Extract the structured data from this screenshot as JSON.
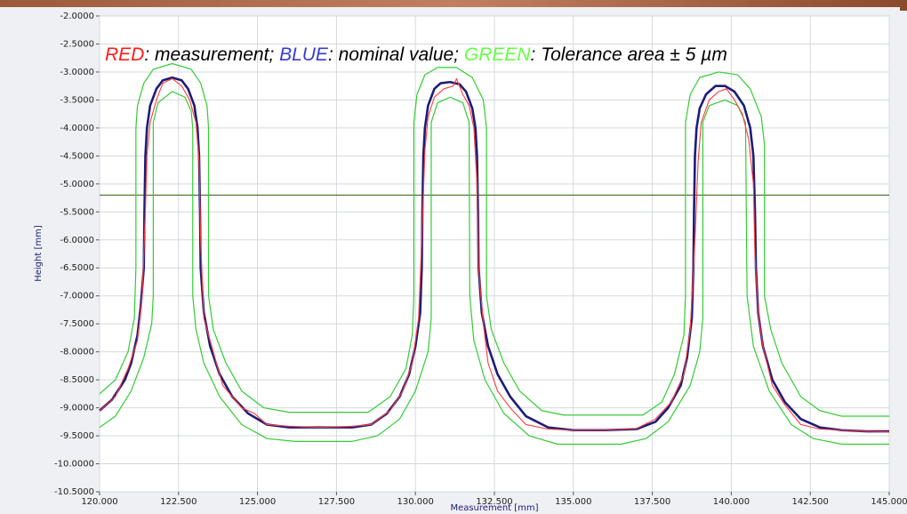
{
  "chart_data": {
    "type": "line",
    "annotation": [
      {
        "text": "RED",
        "color": "#ff1a1a"
      },
      {
        "text": ": measurement; ",
        "color": "#000000"
      },
      {
        "text": "BLUE",
        "color": "#3a3ad0"
      },
      {
        "text": ": nominal value; ",
        "color": "#000000"
      },
      {
        "text": "GREEN",
        "color": "#66ff44"
      },
      {
        "text": ": Tolerance area ± 5 µm",
        "color": "#000000"
      }
    ],
    "x_label": "Measurement [mm]",
    "y_label": "Height [mm]",
    "xlim": [
      120,
      145
    ],
    "ylim": [
      -10.5,
      -2
    ],
    "xticks": [
      {
        "value": 120,
        "label": "120.000"
      },
      {
        "value": 122.5,
        "label": "122.500"
      },
      {
        "value": 125,
        "label": "125.000"
      },
      {
        "value": 127.5,
        "label": "127.500"
      },
      {
        "value": 130,
        "label": "130.000"
      },
      {
        "value": 132.5,
        "label": "132.500"
      },
      {
        "value": 135,
        "label": "135.000"
      },
      {
        "value": 137.5,
        "label": "137.500"
      },
      {
        "value": 140,
        "label": "140.000"
      },
      {
        "value": 142.5,
        "label": "142.500"
      },
      {
        "value": 145,
        "label": "145.000"
      }
    ],
    "yticks": [
      {
        "value": -2,
        "label": "-2.0000"
      },
      {
        "value": -2.5,
        "label": "-2.5000"
      },
      {
        "value": -3,
        "label": "-3.0000"
      },
      {
        "value": -3.5,
        "label": "-3.5000"
      },
      {
        "value": -4,
        "label": "-4.0000"
      },
      {
        "value": -4.5,
        "label": "-4.5000"
      },
      {
        "value": -5,
        "label": "-5.0000"
      },
      {
        "value": -5.5,
        "label": "-5.5000"
      },
      {
        "value": -6,
        "label": "-6.0000"
      },
      {
        "value": -6.5,
        "label": "-6.5000"
      },
      {
        "value": -7,
        "label": "-7.0000"
      },
      {
        "value": -7.5,
        "label": "-7.5000"
      },
      {
        "value": -8,
        "label": "-8.0000"
      },
      {
        "value": -8.5,
        "label": "-8.5000"
      },
      {
        "value": -9,
        "label": "-9.0000"
      },
      {
        "value": -9.5,
        "label": "-9.5000"
      },
      {
        "value": -10,
        "label": "-10.0000"
      },
      {
        "value": -10.5,
        "label": "-10.5000"
      }
    ],
    "grid": true,
    "reference_lines": [
      {
        "value": -5.2,
        "color": "#2f5d0a"
      }
    ],
    "series": [
      {
        "color": "#33cc33",
        "line_width": 1.2,
        "x": [
          120,
          120.5,
          120.9,
          121.1,
          121.15,
          121.15,
          121.2,
          121.4,
          121.7,
          122.3,
          122.9,
          123.2,
          123.4,
          123.45,
          123.45,
          123.6,
          124.0,
          124.5,
          125.2,
          126,
          128.5,
          129.2,
          129.7,
          129.9,
          129.95,
          129.95,
          130.05,
          130.3,
          130.7,
          131.3,
          131.8,
          132.15,
          132.25,
          132.25,
          132.4,
          132.8,
          133.3,
          134,
          134.7,
          137.2,
          137.8,
          138.2,
          138.5,
          138.55,
          138.55,
          138.7,
          139.0,
          139.6,
          140.2,
          140.6,
          140.95,
          141.05,
          141.05,
          141.25,
          141.6,
          142.2,
          142.8,
          143.5,
          145
        ],
        "values": [
          -8.75,
          -8.5,
          -8.0,
          -7.4,
          -6.5,
          -4.0,
          -3.6,
          -3.2,
          -2.95,
          -2.85,
          -2.95,
          -3.2,
          -3.6,
          -4.0,
          -7.0,
          -7.6,
          -8.2,
          -8.7,
          -9.0,
          -9.08,
          -9.08,
          -8.8,
          -8.3,
          -7.7,
          -7.0,
          -3.9,
          -3.4,
          -3.05,
          -2.92,
          -2.92,
          -3.1,
          -3.5,
          -4.0,
          -7.0,
          -7.6,
          -8.2,
          -8.7,
          -9.05,
          -9.13,
          -9.13,
          -8.9,
          -8.4,
          -7.7,
          -7.0,
          -3.9,
          -3.4,
          -3.1,
          -3.0,
          -3.05,
          -3.3,
          -3.8,
          -4.3,
          -7.0,
          -7.6,
          -8.2,
          -8.8,
          -9.05,
          -9.15,
          -9.15
        ]
      },
      {
        "color": "#33cc33",
        "line_width": 1.2,
        "x": [
          120,
          120.5,
          121.0,
          121.4,
          121.65,
          121.7,
          121.7,
          121.85,
          122.3,
          122.7,
          122.9,
          122.95,
          122.95,
          123.05,
          123.3,
          123.8,
          124.5,
          125.3,
          126.2,
          128.0,
          128.8,
          129.5,
          130.0,
          130.4,
          130.5,
          130.5,
          130.7,
          131.1,
          131.5,
          131.7,
          131.72,
          131.85,
          132.2,
          132.8,
          133.6,
          134.5,
          136.5,
          137.3,
          138.0,
          138.7,
          139.0,
          139.1,
          139.1,
          139.3,
          139.8,
          140.2,
          140.45,
          140.5,
          140.7,
          141.2,
          141.9,
          142.6,
          143.5,
          145
        ],
        "values": [
          -9.35,
          -9.15,
          -8.7,
          -8.1,
          -7.5,
          -7.0,
          -3.9,
          -3.55,
          -3.35,
          -3.45,
          -3.7,
          -4.0,
          -7.0,
          -7.6,
          -8.2,
          -8.8,
          -9.3,
          -9.55,
          -9.6,
          -9.6,
          -9.5,
          -9.2,
          -8.7,
          -8.0,
          -7.4,
          -3.9,
          -3.55,
          -3.45,
          -3.55,
          -3.9,
          -7.0,
          -7.8,
          -8.5,
          -9.1,
          -9.5,
          -9.65,
          -9.65,
          -9.55,
          -9.25,
          -8.6,
          -8.0,
          -7.4,
          -3.9,
          -3.6,
          -3.5,
          -3.6,
          -3.9,
          -7.0,
          -7.9,
          -8.7,
          -9.3,
          -9.55,
          -9.65,
          -9.65
        ]
      },
      {
        "color": "#1c1c78",
        "line_width": 2.6,
        "x": [
          120.0,
          120.4,
          120.8,
          121.0,
          121.2,
          121.3,
          121.4,
          121.42,
          121.45,
          121.5,
          121.6,
          121.8,
          122.0,
          122.3,
          122.6,
          122.8,
          123.0,
          123.1,
          123.15,
          123.18,
          123.2,
          123.3,
          123.5,
          123.8,
          124.2,
          124.7,
          125.3,
          126.0,
          127.0,
          128.0,
          128.6,
          129.1,
          129.5,
          129.8,
          130.0,
          130.15,
          130.2,
          130.22,
          130.25,
          130.3,
          130.4,
          130.6,
          130.8,
          131.1,
          131.4,
          131.6,
          131.8,
          131.9,
          131.95,
          131.98,
          132.0,
          132.1,
          132.3,
          132.6,
          133.0,
          133.5,
          134.2,
          135.0,
          136.0,
          137.0,
          137.6,
          138.0,
          138.4,
          138.6,
          138.75,
          138.8,
          138.82,
          138.85,
          138.9,
          139.0,
          139.2,
          139.5,
          139.8,
          140.1,
          140.4,
          140.6,
          140.7,
          140.75,
          140.78,
          140.85,
          141.0,
          141.3,
          141.7,
          142.2,
          142.8,
          143.5,
          144.3,
          145.0
        ],
        "values": [
          -9.05,
          -8.85,
          -8.5,
          -8.2,
          -7.7,
          -7.2,
          -6.5,
          -5.5,
          -4.5,
          -4.0,
          -3.6,
          -3.3,
          -3.15,
          -3.1,
          -3.15,
          -3.3,
          -3.6,
          -4.0,
          -4.5,
          -5.5,
          -6.5,
          -7.3,
          -7.9,
          -8.4,
          -8.8,
          -9.1,
          -9.3,
          -9.35,
          -9.35,
          -9.35,
          -9.3,
          -9.1,
          -8.8,
          -8.4,
          -7.9,
          -7.3,
          -6.5,
          -5.5,
          -4.5,
          -4.0,
          -3.6,
          -3.3,
          -3.2,
          -3.18,
          -3.22,
          -3.35,
          -3.65,
          -4.0,
          -4.5,
          -5.5,
          -6.5,
          -7.3,
          -7.9,
          -8.4,
          -8.8,
          -9.15,
          -9.35,
          -9.4,
          -9.4,
          -9.38,
          -9.25,
          -9.0,
          -8.6,
          -8.1,
          -7.4,
          -6.5,
          -5.5,
          -4.5,
          -4.0,
          -3.65,
          -3.4,
          -3.25,
          -3.25,
          -3.35,
          -3.6,
          -4.0,
          -4.5,
          -5.5,
          -6.5,
          -7.3,
          -7.9,
          -8.5,
          -8.9,
          -9.2,
          -9.35,
          -9.4,
          -9.42,
          -9.42
        ]
      },
      {
        "color": "#ff3b3b",
        "line_width": 1.1,
        "x": [
          120,
          120.5,
          120.9,
          121.2,
          121.35,
          121.45,
          121.5,
          121.6,
          121.8,
          122.0,
          122.3,
          122.6,
          122.85,
          123.05,
          123.15,
          123.2,
          123.3,
          123.6,
          123.9,
          124.2,
          124.5,
          124.9,
          125.3,
          126.0,
          127.0,
          128.0,
          128.6,
          129.2,
          129.6,
          129.9,
          130.1,
          130.2,
          130.3,
          130.4,
          130.6,
          130.9,
          131.2,
          131.3,
          131.5,
          131.7,
          131.85,
          131.95,
          132.0,
          132.15,
          132.3,
          132.6,
          133.0,
          133.5,
          134.2,
          135,
          136,
          137,
          137.6,
          138.1,
          138.5,
          138.7,
          138.85,
          138.95,
          139.05,
          139.3,
          139.6,
          139.85,
          140.1,
          140.35,
          140.55,
          140.7,
          140.75,
          140.85,
          141.0,
          141.3,
          141.7,
          142.2,
          142.8,
          143.5,
          144.3,
          145
        ],
        "values": [
          -9.05,
          -8.8,
          -8.3,
          -7.8,
          -7.0,
          -5.5,
          -4.5,
          -3.9,
          -3.5,
          -3.2,
          -3.12,
          -3.25,
          -3.5,
          -3.9,
          -4.6,
          -6.0,
          -7.4,
          -8.0,
          -8.6,
          -8.8,
          -9.0,
          -9.1,
          -9.3,
          -9.33,
          -9.35,
          -9.33,
          -9.3,
          -9.05,
          -8.7,
          -8.2,
          -7.4,
          -6.0,
          -4.4,
          -3.8,
          -3.45,
          -3.3,
          -3.25,
          -3.12,
          -3.4,
          -3.6,
          -4.0,
          -5.0,
          -6.5,
          -7.5,
          -8.2,
          -8.7,
          -9.0,
          -9.3,
          -9.38,
          -9.4,
          -9.4,
          -9.37,
          -9.2,
          -8.9,
          -8.4,
          -7.6,
          -6.0,
          -4.6,
          -3.9,
          -3.5,
          -3.35,
          -3.3,
          -3.5,
          -3.75,
          -4.2,
          -5.0,
          -6.3,
          -7.3,
          -7.9,
          -8.6,
          -8.95,
          -9.3,
          -9.38,
          -9.4,
          -9.42,
          -9.43
        ]
      }
    ]
  }
}
